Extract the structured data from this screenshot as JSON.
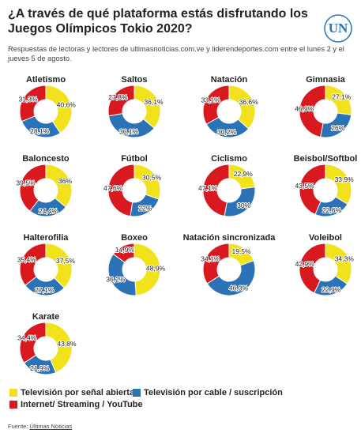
{
  "title": "¿A través de qué plataforma estás disfrutando los Juegos Olímpicos Tokio 2020?",
  "subtitle": "Respuestas de lectoras y lectores de ultimasnoticias.com.ve y liderendeportes.com entre el lunes 2 y el jueves 5 de agosto.",
  "logo": "UN",
  "legend": {
    "items": [
      {
        "name": "Televisión por señal abierta",
        "color": "#f2e21b"
      },
      {
        "name": "Televisión por cable / suscripción",
        "color": "#2b73b6"
      },
      {
        "name": "Internet/ Streaming / YouTube",
        "color": "#d8191f"
      }
    ]
  },
  "source": {
    "label": "Fuente:",
    "text": "Últimas Noticias"
  },
  "chart_data": [
    {
      "type": "pie",
      "title": "Atletismo",
      "values": [
        40.6,
        28.1,
        31.3
      ],
      "value_labels": [
        "40,6%",
        "28,1%",
        "31,3%"
      ]
    },
    {
      "type": "pie",
      "title": "Saltos",
      "values": [
        36.1,
        36.1,
        27.8
      ],
      "value_labels": [
        "36,1%",
        "36,1%",
        "27,8%"
      ]
    },
    {
      "type": "pie",
      "title": "Natación",
      "values": [
        36.6,
        30.2,
        33.1
      ],
      "value_labels": [
        "36,6%",
        "30,2%",
        "33,1%"
      ]
    },
    {
      "type": "pie",
      "title": "Gimnasia",
      "values": [
        27.1,
        26,
        46.9
      ],
      "value_labels": [
        "27,1%",
        "26%",
        "46,9%"
      ]
    },
    {
      "type": "pie",
      "title": "Baloncesto",
      "values": [
        36,
        24.4,
        39.5
      ],
      "value_labels": [
        "36%",
        "24,4%",
        "39,5%"
      ]
    },
    {
      "type": "pie",
      "title": "Fútbol",
      "values": [
        30.5,
        22,
        47.6
      ],
      "value_labels": [
        "30,5%",
        "22%",
        "47,6%"
      ]
    },
    {
      "type": "pie",
      "title": "Ciclismo",
      "values": [
        22.9,
        30,
        47.1
      ],
      "value_labels": [
        "22,9%",
        "30%",
        "47,1%"
      ]
    },
    {
      "type": "pie",
      "title": "Beisbol/Softbol",
      "values": [
        33.9,
        22.6,
        43.5
      ],
      "value_labels": [
        "33,9%",
        "22,6%",
        "43,5%"
      ]
    },
    {
      "type": "pie",
      "title": "Halterofilia",
      "values": [
        37.5,
        27.1,
        35.4
      ],
      "value_labels": [
        "37,5%",
        "27,1%",
        "35,4%"
      ]
    },
    {
      "type": "pie",
      "title": "Boxeo",
      "values": [
        48.9,
        36.2,
        14.9
      ],
      "value_labels": [
        "48,9%",
        "36,2%",
        "14,9%"
      ]
    },
    {
      "type": "pie",
      "title": "Natación sincronizada",
      "values": [
        19.5,
        46.3,
        34.1
      ],
      "value_labels": [
        "19,5%",
        "46,3%",
        "34,1%"
      ]
    },
    {
      "type": "pie",
      "title": "Voleibol",
      "values": [
        34.3,
        22.9,
        42.9
      ],
      "value_labels": [
        "34,3%",
        "22,9%",
        "42,9%"
      ]
    },
    {
      "type": "pie",
      "title": "Karate",
      "values": [
        43.8,
        21.9,
        34.4
      ],
      "value_labels": [
        "43,8%",
        "21,9%",
        "34,4%"
      ]
    }
  ]
}
